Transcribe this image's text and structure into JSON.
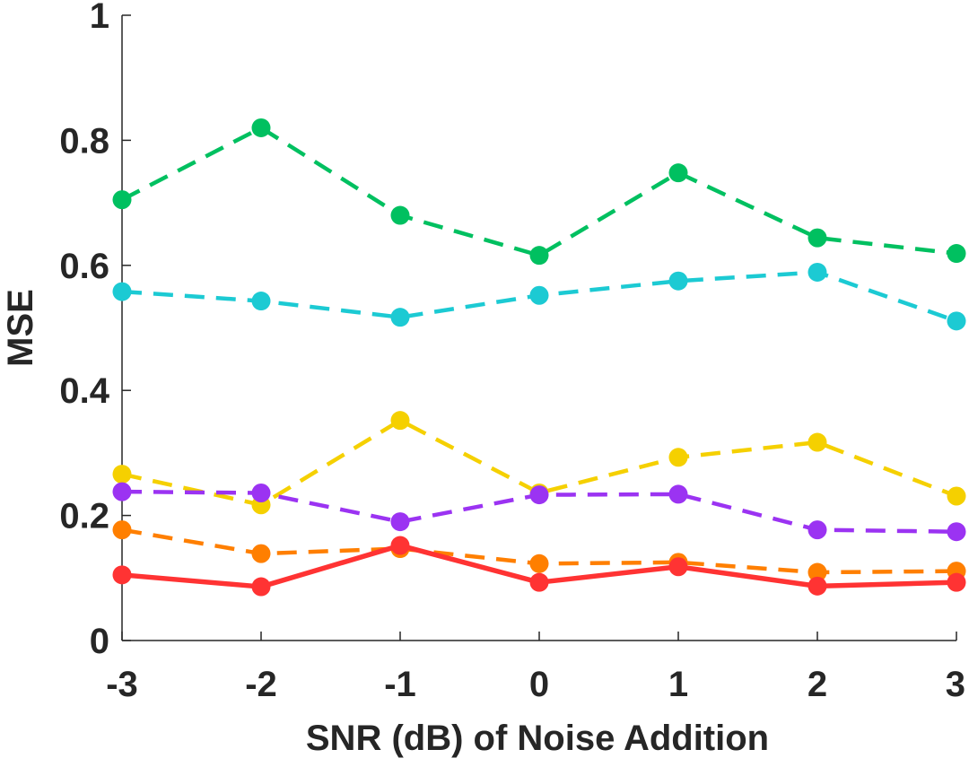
{
  "chart_data": {
    "type": "line",
    "title": "",
    "xlabel": "SNR (dB) of Noise Addition",
    "ylabel": "MSE",
    "x": [
      -3,
      -2,
      -1,
      0,
      1,
      2,
      3
    ],
    "xticks": [
      "-3",
      "-2",
      "-1",
      "0",
      "1",
      "2",
      "3"
    ],
    "yticks": [
      "0",
      "0.2",
      "0.4",
      "0.6",
      "0.8",
      "1"
    ],
    "xlim": [
      -3,
      3
    ],
    "ylim": [
      0,
      1
    ],
    "grid": false,
    "legend": "none",
    "series": [
      {
        "color": "#00c060",
        "dash": "dashed",
        "values": [
          0.705,
          0.82,
          0.68,
          0.616,
          0.748,
          0.644,
          0.619
        ]
      },
      {
        "color": "#1ccad3",
        "dash": "dashed",
        "values": [
          0.558,
          0.543,
          0.517,
          0.552,
          0.575,
          0.589,
          0.511
        ]
      },
      {
        "color": "#f5d000",
        "dash": "dashed",
        "values": [
          0.266,
          0.217,
          0.352,
          0.236,
          0.293,
          0.317,
          0.231
        ]
      },
      {
        "color": "#9b33f2",
        "dash": "dashed",
        "values": [
          0.238,
          0.236,
          0.19,
          0.233,
          0.234,
          0.177,
          0.174
        ]
      },
      {
        "color": "#ff7f00",
        "dash": "dashed",
        "values": [
          0.177,
          0.139,
          0.147,
          0.123,
          0.125,
          0.109,
          0.111
        ]
      },
      {
        "color": "#ff3333",
        "dash": "solid",
        "values": [
          0.105,
          0.086,
          0.152,
          0.093,
          0.118,
          0.087,
          0.093
        ]
      }
    ]
  }
}
